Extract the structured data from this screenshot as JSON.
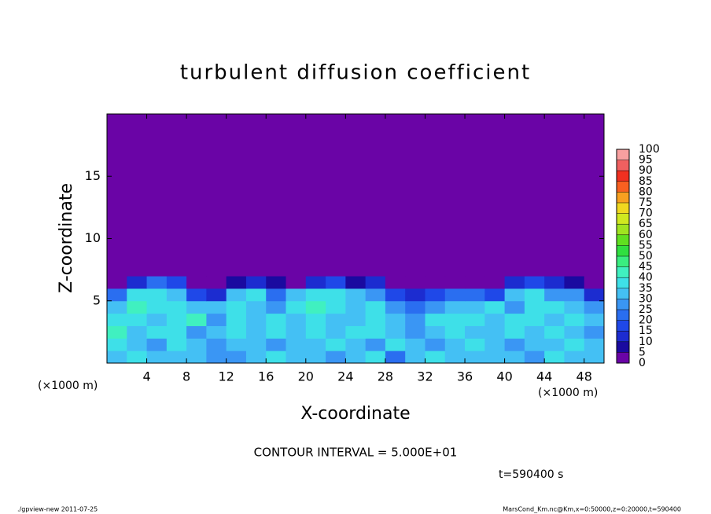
{
  "chart_data": {
    "type": "heatmap",
    "title": "turbulent diffusion coefficient",
    "xlabel": "X-coordinate",
    "ylabel": "Z-coordinate",
    "x_unit_label": "(×1000 m)",
    "y_unit_label": "(×1000 m)",
    "xlim": [
      0,
      50
    ],
    "ylim": [
      0,
      20
    ],
    "xticks": [
      4,
      8,
      12,
      16,
      20,
      24,
      28,
      32,
      36,
      40,
      44,
      48
    ],
    "yticks": [
      5,
      10,
      15
    ],
    "x_bins": [
      0,
      2,
      4,
      6,
      8,
      10,
      12,
      14,
      16,
      18,
      20,
      22,
      24,
      26,
      28,
      30,
      32,
      34,
      36,
      38,
      40,
      42,
      44,
      46,
      48,
      50
    ],
    "z_bins": [
      0,
      1,
      2,
      3,
      4,
      5,
      6,
      7,
      20
    ],
    "values": [
      [
        30,
        35,
        30,
        32,
        30,
        28,
        25,
        30,
        35,
        30,
        32,
        28,
        30,
        35,
        20,
        30,
        35,
        32,
        30,
        33,
        30,
        28,
        35,
        32,
        30
      ],
      [
        35,
        30,
        28,
        35,
        30,
        25,
        32,
        30,
        28,
        33,
        30,
        35,
        30,
        25,
        35,
        32,
        28,
        30,
        35,
        30,
        28,
        33,
        30,
        35,
        30
      ],
      [
        40,
        30,
        35,
        38,
        28,
        30,
        35,
        32,
        38,
        30,
        35,
        30,
        35,
        38,
        30,
        28,
        32,
        35,
        30,
        32,
        38,
        30,
        35,
        32,
        28
      ],
      [
        35,
        38,
        30,
        35,
        40,
        28,
        35,
        30,
        35,
        32,
        38,
        30,
        33,
        35,
        30,
        25,
        35,
        38,
        35,
        30,
        35,
        38,
        30,
        35,
        30
      ],
      [
        30,
        40,
        35,
        38,
        30,
        30,
        38,
        30,
        25,
        35,
        40,
        35,
        30,
        38,
        25,
        20,
        28,
        30,
        32,
        35,
        28,
        35,
        38,
        30,
        25
      ],
      [
        20,
        35,
        38,
        30,
        15,
        10,
        30,
        35,
        20,
        30,
        35,
        38,
        30,
        25,
        15,
        10,
        15,
        20,
        20,
        15,
        30,
        35,
        28,
        25,
        10
      ],
      [
        0,
        10,
        20,
        15,
        0,
        0,
        5,
        10,
        5,
        0,
        10,
        15,
        5,
        10,
        0,
        0,
        0,
        0,
        0,
        0,
        10,
        15,
        10,
        5,
        0
      ],
      [
        0,
        0,
        0,
        0,
        0,
        0,
        0,
        0,
        0,
        0,
        0,
        0,
        0,
        0,
        0,
        0,
        0,
        0,
        0,
        0,
        0,
        0,
        0,
        0,
        0
      ]
    ],
    "levels": [
      0,
      5,
      10,
      15,
      20,
      25,
      30,
      35,
      40,
      45,
      50,
      55,
      60,
      65,
      70,
      75,
      80,
      85,
      90,
      95,
      100
    ],
    "colors": [
      "#6a04a6",
      "#1a0aa0",
      "#1c2cd0",
      "#1f48e8",
      "#2a6ef0",
      "#3a96f4",
      "#44c0f4",
      "#3ee0e8",
      "#40f0c0",
      "#3aee80",
      "#30e040",
      "#60e020",
      "#a0e420",
      "#d0e820",
      "#f0d820",
      "#f8a020",
      "#f86020",
      "#f03020",
      "#f06060",
      "#f8a0a0"
    ],
    "contour_interval_label": "CONTOUR INTERVAL = 5.000E+01",
    "time_label": "t=590400 s",
    "footer_left": "./gpview-new  2011-07-25",
    "footer_right": "MarsCond_Km.nc@Km,x=0:50000,z=0:20000,t=590400"
  }
}
